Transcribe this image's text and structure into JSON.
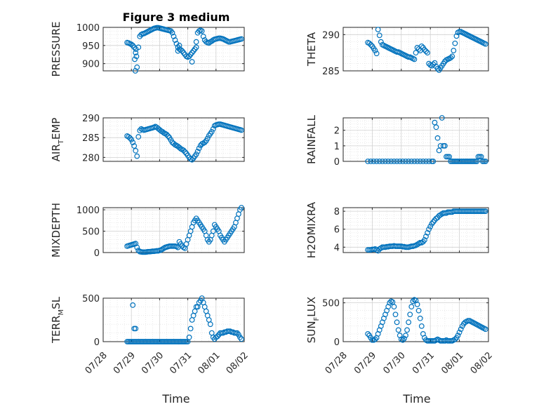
{
  "figure_title": "Figure 3 medium",
  "x_axis_label": "Time",
  "x_tick_labels": [
    "07/28",
    "07/29",
    "07/30",
    "07/31",
    "08/01",
    "08/02"
  ],
  "marker_color": "#0072BD",
  "chart_data": [
    {
      "type": "scatter",
      "ylabel": "PRESSURE",
      "title": "Figure 3 medium",
      "xlim": [
        0,
        5
      ],
      "ylim": [
        880,
        1000
      ],
      "yticks": [
        900,
        950,
        1000
      ],
      "grid": true,
      "x": [
        0.85,
        0.9,
        0.95,
        1.0,
        1.05,
        1.1,
        1.15,
        1.2,
        1.25,
        1.3,
        1.35,
        1.4,
        1.45,
        1.5,
        1.55,
        1.6,
        1.65,
        1.7,
        1.75,
        1.8,
        1.85,
        1.9,
        1.95,
        2.0,
        2.05,
        2.1,
        2.15,
        2.2,
        2.25,
        2.3,
        2.35,
        2.4,
        2.45,
        2.5,
        2.55,
        2.6,
        2.65,
        2.7,
        2.75,
        2.8,
        2.85,
        2.9,
        2.95,
        3.0,
        3.05,
        3.1,
        3.15,
        3.2,
        3.25,
        3.3,
        3.35,
        3.4,
        3.45,
        3.5,
        3.55,
        3.6,
        3.65,
        3.7,
        3.75,
        3.8,
        3.85,
        3.9,
        3.95,
        4.0,
        4.05,
        4.1,
        4.15,
        4.2,
        4.25,
        4.3,
        4.35,
        4.4,
        4.45,
        4.5,
        4.55,
        4.6,
        4.65,
        4.7,
        4.75,
        4.8,
        4.85,
        4.9,
        1.12,
        1.14,
        1.16,
        1.18,
        2.65,
        2.7,
        3.15,
        3.3
      ],
      "y": [
        958,
        957,
        955,
        953,
        950,
        945,
        930,
        890,
        945,
        975,
        980,
        982,
        983,
        985,
        987,
        989,
        991,
        993,
        995,
        997,
        998,
        999,
        999,
        998,
        997,
        996,
        995,
        994,
        993,
        992,
        991,
        990,
        985,
        975,
        965,
        955,
        945,
        940,
        938,
        935,
        930,
        925,
        920,
        918,
        920,
        925,
        930,
        935,
        940,
        960,
        985,
        990,
        992,
        990,
        975,
        965,
        960,
        958,
        957,
        960,
        962,
        965,
        967,
        968,
        969,
        970,
        970,
        969,
        968,
        966,
        964,
        962,
        960,
        960,
        961,
        962,
        963,
        964,
        965,
        966,
        967,
        968,
        912,
        880,
        940,
        920,
        935,
        950,
        905,
        945
      ]
    },
    {
      "type": "scatter",
      "ylabel": "THETA",
      "xlim": [
        0,
        5
      ],
      "ylim": [
        285,
        291
      ],
      "yticks": [
        285,
        290
      ],
      "grid": true,
      "x": [
        0.85,
        0.9,
        0.95,
        1.0,
        1.05,
        1.1,
        1.15,
        1.2,
        1.25,
        1.3,
        1.35,
        1.4,
        1.45,
        1.5,
        1.55,
        1.6,
        1.65,
        1.7,
        1.75,
        1.8,
        1.85,
        1.9,
        1.95,
        2.0,
        2.05,
        2.1,
        2.15,
        2.2,
        2.25,
        2.3,
        2.35,
        2.4,
        2.45,
        2.5,
        2.55,
        2.6,
        2.65,
        2.7,
        2.75,
        2.8,
        2.85,
        2.9,
        2.95,
        3.0,
        3.05,
        3.1,
        3.15,
        3.2,
        3.25,
        3.3,
        3.35,
        3.4,
        3.45,
        3.5,
        3.55,
        3.6,
        3.65,
        3.7,
        3.75,
        3.8,
        3.85,
        3.9,
        3.95,
        4.0,
        4.05,
        4.1,
        4.15,
        4.2,
        4.25,
        4.3,
        4.35,
        4.4,
        4.45,
        4.5,
        4.55,
        4.6,
        4.65,
        4.7,
        4.75,
        4.8,
        4.85,
        4.9
      ],
      "y": [
        288.9,
        288.8,
        288.6,
        288.4,
        288.1,
        287.8,
        287.4,
        290.7,
        289.9,
        289.0,
        288.6,
        288.5,
        288.4,
        288.3,
        288.2,
        288.1,
        288.0,
        287.9,
        287.8,
        287.7,
        287.6,
        287.6,
        287.5,
        287.4,
        287.3,
        287.2,
        287.1,
        287.0,
        286.9,
        286.9,
        286.8,
        286.7,
        286.6,
        287.5,
        288.2,
        288.0,
        287.8,
        288.4,
        288.2,
        287.9,
        287.7,
        287.5,
        286.0,
        285.8,
        285.7,
        285.9,
        286.1,
        285.6,
        285.3,
        285.1,
        285.4,
        285.7,
        286.0,
        286.3,
        286.5,
        286.6,
        286.7,
        286.8,
        287.0,
        287.8,
        288.8,
        289.8,
        290.3,
        290.4,
        290.4,
        290.3,
        290.2,
        290.1,
        290.0,
        289.9,
        289.8,
        289.7,
        289.6,
        289.5,
        289.4,
        289.3,
        289.2,
        289.1,
        289.0,
        288.9,
        288.8,
        288.7
      ]
    },
    {
      "type": "scatter",
      "ylabel": "AIR_TEMP",
      "ylabel_main": "AIR",
      "ylabel_sub": "T",
      "ylabel_rest": "EMP",
      "xlim": [
        0,
        5
      ],
      "ylim": [
        279,
        290
      ],
      "yticks": [
        280,
        285,
        290
      ],
      "grid": true,
      "x": [
        0.85,
        0.9,
        0.95,
        1.0,
        1.05,
        1.1,
        1.15,
        1.2,
        1.25,
        1.3,
        1.35,
        1.4,
        1.45,
        1.5,
        1.55,
        1.6,
        1.65,
        1.7,
        1.75,
        1.8,
        1.85,
        1.9,
        1.95,
        2.0,
        2.05,
        2.1,
        2.15,
        2.2,
        2.25,
        2.3,
        2.35,
        2.4,
        2.45,
        2.5,
        2.55,
        2.6,
        2.65,
        2.7,
        2.75,
        2.8,
        2.85,
        2.9,
        2.95,
        3.0,
        3.05,
        3.1,
        3.15,
        3.2,
        3.25,
        3.3,
        3.35,
        3.4,
        3.45,
        3.5,
        3.55,
        3.6,
        3.65,
        3.7,
        3.75,
        3.8,
        3.85,
        3.9,
        3.95,
        4.0,
        4.05,
        4.1,
        4.15,
        4.2,
        4.25,
        4.3,
        4.35,
        4.4,
        4.45,
        4.5,
        4.55,
        4.6,
        4.65,
        4.7,
        4.75,
        4.8,
        4.85,
        4.9
      ],
      "y": [
        285.4,
        285.2,
        284.9,
        284.5,
        283.8,
        282.9,
        281.7,
        280.3,
        285.2,
        286.8,
        287.2,
        287.0,
        286.9,
        287.0,
        287.1,
        287.2,
        287.3,
        287.4,
        287.5,
        287.6,
        287.8,
        287.6,
        287.3,
        287.0,
        286.7,
        286.5,
        286.2,
        286.0,
        285.8,
        285.4,
        285.0,
        284.4,
        283.8,
        283.5,
        283.2,
        283.0,
        282.8,
        282.5,
        282.2,
        282.0,
        281.8,
        281.4,
        281.0,
        280.5,
        280.0,
        279.6,
        279.4,
        279.8,
        280.3,
        280.8,
        281.5,
        282.3,
        283.0,
        283.4,
        283.6,
        283.8,
        284.2,
        284.8,
        285.5,
        286.0,
        286.5,
        287.2,
        288.0,
        288.2,
        288.3,
        288.4,
        288.4,
        288.3,
        288.2,
        288.1,
        288.0,
        287.9,
        287.8,
        287.7,
        287.6,
        287.5,
        287.4,
        287.3,
        287.2,
        287.1,
        287.0,
        286.9
      ]
    },
    {
      "type": "scatter",
      "ylabel": "RAINFALL",
      "xlim": [
        0,
        5
      ],
      "ylim": [
        0,
        2.8
      ],
      "yticks": [
        0,
        1,
        2
      ],
      "grid": true,
      "x": [
        0.85,
        0.95,
        1.05,
        1.15,
        1.25,
        1.35,
        1.45,
        1.55,
        1.65,
        1.75,
        1.85,
        1.95,
        2.05,
        2.15,
        2.25,
        2.35,
        2.45,
        2.55,
        2.65,
        2.75,
        2.85,
        2.95,
        3.05,
        3.1,
        3.15,
        3.2,
        3.25,
        3.3,
        3.35,
        3.4,
        3.45,
        3.5,
        3.55,
        3.6,
        3.65,
        3.7,
        3.75,
        3.8,
        3.85,
        3.9,
        3.95,
        4.0,
        4.05,
        4.1,
        4.15,
        4.2,
        4.25,
        4.3,
        4.35,
        4.4,
        4.45,
        4.5,
        4.55,
        4.6,
        4.65,
        4.7,
        4.75,
        4.8,
        4.85,
        4.9
      ],
      "y": [
        0,
        0,
        0,
        0,
        0,
        0,
        0,
        0,
        0,
        0,
        0,
        0,
        0,
        0,
        0,
        0,
        0,
        0,
        0,
        0,
        0,
        0,
        0,
        0,
        2.5,
        2.2,
        1.5,
        0.7,
        1.0,
        2.8,
        1.0,
        1.0,
        0.3,
        0.3,
        0.3,
        0,
        0,
        0,
        0,
        0,
        0,
        0,
        0,
        0,
        0,
        0,
        0,
        0,
        0,
        0,
        0,
        0,
        0,
        0,
        0.3,
        0.3,
        0.3,
        0,
        0,
        0
      ]
    },
    {
      "type": "scatter",
      "ylabel": "MIXDEPTH",
      "xlim": [
        0,
        5
      ],
      "ylim": [
        0,
        1050
      ],
      "yticks": [
        0,
        500,
        1000
      ],
      "grid": true,
      "x": [
        0.85,
        0.9,
        0.95,
        1.0,
        1.05,
        1.1,
        1.15,
        1.2,
        1.25,
        1.3,
        1.35,
        1.4,
        1.45,
        1.5,
        1.55,
        1.6,
        1.65,
        1.7,
        1.75,
        1.8,
        1.85,
        1.9,
        1.95,
        2.0,
        2.05,
        2.1,
        2.15,
        2.2,
        2.25,
        2.3,
        2.35,
        2.4,
        2.45,
        2.5,
        2.55,
        2.6,
        2.65,
        2.7,
        2.75,
        2.8,
        2.85,
        2.9,
        2.95,
        3.0,
        3.05,
        3.1,
        3.15,
        3.2,
        3.25,
        3.3,
        3.35,
        3.4,
        3.45,
        3.5,
        3.55,
        3.6,
        3.65,
        3.7,
        3.75,
        3.8,
        3.85,
        3.9,
        3.95,
        4.0,
        4.05,
        4.1,
        4.15,
        4.2,
        4.25,
        4.3,
        4.35,
        4.4,
        4.45,
        4.5,
        4.55,
        4.6,
        4.65,
        4.7,
        4.75,
        4.8,
        4.85,
        4.9
      ],
      "y": [
        150,
        160,
        170,
        180,
        190,
        200,
        210,
        120,
        50,
        20,
        15,
        10,
        10,
        10,
        15,
        20,
        20,
        25,
        30,
        30,
        35,
        40,
        40,
        50,
        60,
        80,
        100,
        120,
        130,
        140,
        150,
        150,
        150,
        150,
        150,
        140,
        120,
        250,
        200,
        150,
        120,
        100,
        200,
        300,
        400,
        500,
        600,
        700,
        750,
        800,
        750,
        700,
        650,
        600,
        550,
        500,
        400,
        300,
        250,
        300,
        400,
        500,
        650,
        600,
        550,
        500,
        400,
        350,
        300,
        250,
        300,
        350,
        400,
        450,
        500,
        550,
        600,
        700,
        800,
        900,
        1000,
        1050
      ]
    },
    {
      "type": "scatter",
      "ylabel": "H2OMIXRA",
      "xlim": [
        0,
        5
      ],
      "ylim": [
        3.4,
        8.4
      ],
      "yticks": [
        4,
        6,
        8
      ],
      "grid": true,
      "x": [
        0.85,
        0.9,
        0.95,
        1.0,
        1.05,
        1.1,
        1.15,
        1.2,
        1.25,
        1.3,
        1.35,
        1.4,
        1.45,
        1.5,
        1.55,
        1.6,
        1.65,
        1.7,
        1.75,
        1.8,
        1.85,
        1.9,
        1.95,
        2.0,
        2.05,
        2.1,
        2.15,
        2.2,
        2.25,
        2.3,
        2.35,
        2.4,
        2.45,
        2.5,
        2.55,
        2.6,
        2.65,
        2.7,
        2.75,
        2.8,
        2.85,
        2.9,
        2.95,
        3.0,
        3.05,
        3.1,
        3.15,
        3.2,
        3.25,
        3.3,
        3.35,
        3.4,
        3.45,
        3.5,
        3.55,
        3.6,
        3.65,
        3.7,
        3.75,
        3.8,
        3.85,
        3.9,
        3.95,
        4.0,
        4.05,
        4.1,
        4.15,
        4.2,
        4.25,
        4.3,
        4.35,
        4.4,
        4.45,
        4.5,
        4.55,
        4.6,
        4.65,
        4.7,
        4.75,
        4.8,
        4.85,
        4.9
      ],
      "y": [
        3.7,
        3.7,
        3.7,
        3.75,
        3.75,
        3.8,
        3.7,
        3.6,
        3.8,
        3.9,
        4.0,
        4.0,
        4.0,
        4.05,
        4.05,
        4.1,
        4.1,
        4.1,
        4.15,
        4.1,
        4.1,
        4.1,
        4.1,
        4.1,
        4.05,
        4.05,
        4.0,
        4.0,
        4.0,
        4.05,
        4.1,
        4.1,
        4.15,
        4.2,
        4.3,
        4.4,
        4.5,
        4.5,
        4.6,
        4.8,
        5.2,
        5.6,
        6.0,
        6.3,
        6.6,
        6.8,
        7.0,
        7.2,
        7.3,
        7.5,
        7.6,
        7.7,
        7.8,
        7.8,
        7.8,
        7.9,
        7.9,
        7.9,
        7.9,
        8.0,
        8.0,
        8.0,
        8.0,
        8.0,
        8.0,
        8.0,
        8.0,
        8.0,
        8.0,
        8.0,
        8.0,
        8.0,
        8.0,
        8.0,
        8.0,
        8.0,
        8.0,
        8.0,
        8.0,
        8.0,
        8.0,
        8.0
      ]
    },
    {
      "type": "scatter",
      "ylabel": "TERR_MSL",
      "ylabel_main": "TERR",
      "ylabel_sub": "M",
      "ylabel_rest": "SL",
      "xlim": [
        0,
        5
      ],
      "ylim": [
        0,
        500
      ],
      "yticks": [
        0,
        500
      ],
      "grid": true,
      "x": [
        0.85,
        0.9,
        0.95,
        1.0,
        1.05,
        1.1,
        1.15,
        1.2,
        1.25,
        1.3,
        1.35,
        1.4,
        1.45,
        1.5,
        1.55,
        1.6,
        1.65,
        1.7,
        1.75,
        1.8,
        1.85,
        1.9,
        1.95,
        2.0,
        2.05,
        2.1,
        2.15,
        2.2,
        2.25,
        2.3,
        2.35,
        2.4,
        2.45,
        2.5,
        2.55,
        2.6,
        2.65,
        2.7,
        2.75,
        2.8,
        2.85,
        2.9,
        2.95,
        3.0,
        3.05,
        3.1,
        3.15,
        3.2,
        3.25,
        3.3,
        3.35,
        3.4,
        3.45,
        3.5,
        3.55,
        3.6,
        3.65,
        3.7,
        3.75,
        3.8,
        3.85,
        3.9,
        3.95,
        4.0,
        4.05,
        4.1,
        4.15,
        4.2,
        4.25,
        4.3,
        4.35,
        4.4,
        4.45,
        4.5,
        4.55,
        4.6,
        4.65,
        4.7,
        4.75,
        4.8,
        4.85,
        4.9,
        1.05,
        1.1,
        1.15
      ],
      "y": [
        0,
        0,
        0,
        0,
        0,
        0,
        0,
        0,
        0,
        0,
        0,
        0,
        0,
        0,
        0,
        0,
        0,
        0,
        0,
        0,
        0,
        0,
        0,
        0,
        0,
        0,
        0,
        0,
        0,
        0,
        0,
        0,
        0,
        0,
        0,
        0,
        0,
        0,
        0,
        0,
        0,
        0,
        0,
        0,
        50,
        150,
        250,
        300,
        350,
        400,
        400,
        450,
        470,
        500,
        450,
        400,
        350,
        300,
        250,
        200,
        100,
        50,
        30,
        50,
        60,
        80,
        100,
        100,
        100,
        110,
        110,
        120,
        120,
        120,
        110,
        110,
        100,
        100,
        100,
        80,
        50,
        30,
        420,
        150,
        150
      ]
    },
    {
      "type": "scatter",
      "ylabel": "SUN_FLUX",
      "ylabel_main": "SUN",
      "ylabel_sub": "F",
      "ylabel_rest": "LUX",
      "xlim": [
        0,
        5
      ],
      "ylim": [
        0,
        560
      ],
      "yticks": [
        0,
        500
      ],
      "grid": true,
      "x": [
        0.85,
        0.9,
        0.95,
        1.0,
        1.05,
        1.1,
        1.15,
        1.2,
        1.25,
        1.3,
        1.35,
        1.4,
        1.45,
        1.5,
        1.55,
        1.6,
        1.65,
        1.7,
        1.75,
        1.8,
        1.85,
        1.9,
        1.95,
        2.0,
        2.05,
        2.1,
        2.15,
        2.2,
        2.25,
        2.3,
        2.35,
        2.4,
        2.45,
        2.5,
        2.55,
        2.6,
        2.65,
        2.7,
        2.75,
        2.8,
        2.85,
        2.9,
        2.95,
        3.0,
        3.05,
        3.1,
        3.15,
        3.2,
        3.25,
        3.3,
        3.35,
        3.4,
        3.45,
        3.5,
        3.55,
        3.6,
        3.65,
        3.7,
        3.75,
        3.8,
        3.85,
        3.9,
        3.95,
        4.0,
        4.05,
        4.1,
        4.15,
        4.2,
        4.25,
        4.3,
        4.35,
        4.4,
        4.45,
        4.5,
        4.55,
        4.6,
        4.65,
        4.7,
        4.75,
        4.8,
        4.85,
        4.9
      ],
      "y": [
        100,
        80,
        50,
        20,
        20,
        30,
        50,
        100,
        150,
        200,
        250,
        300,
        350,
        400,
        450,
        500,
        520,
        510,
        450,
        350,
        250,
        150,
        80,
        30,
        20,
        40,
        80,
        150,
        250,
        350,
        450,
        520,
        540,
        530,
        480,
        400,
        300,
        200,
        100,
        50,
        20,
        10,
        10,
        10,
        10,
        10,
        10,
        20,
        30,
        20,
        10,
        10,
        10,
        10,
        20,
        10,
        10,
        10,
        10,
        20,
        30,
        50,
        80,
        120,
        160,
        200,
        230,
        250,
        260,
        270,
        270,
        260,
        250,
        240,
        230,
        220,
        210,
        200,
        190,
        180,
        170,
        160
      ]
    }
  ]
}
